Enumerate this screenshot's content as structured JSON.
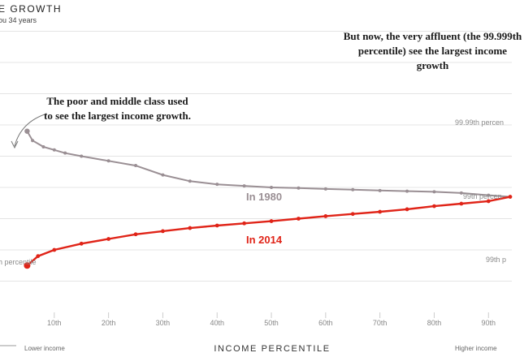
{
  "header": {
    "title": "E GROWTH",
    "subtitle": "ou 34 years"
  },
  "annotations": {
    "poor": "The poor and middle class used to see the largest income growth.",
    "rich": "But now, the very affluent (the 99.999th percentile) see the largest income growth"
  },
  "right_labels": [
    "99.99th percen",
    "99th percen",
    "99th p"
  ],
  "left_label": "h percentile",
  "bottom_labels": {
    "lower": "Lower income",
    "higher": "Higher income"
  },
  "colors": {
    "series_1980": "#9a8f94",
    "series_2014": "#e02418",
    "grid": "#e4e4e4"
  },
  "chart_data": {
    "type": "line",
    "xlabel": "INCOME PERCENTILE",
    "x_ticks": [
      "10th",
      "20th",
      "30th",
      "40th",
      "50th",
      "60th",
      "70th",
      "80th",
      "90th"
    ],
    "x_tick_values": [
      10,
      20,
      30,
      40,
      50,
      60,
      70,
      80,
      90
    ],
    "xlim": [
      0,
      94
    ],
    "ylim": [
      0,
      100
    ],
    "grid": true,
    "series": [
      {
        "name": "In 1980",
        "x": [
          5,
          6,
          8,
          10,
          12,
          15,
          20,
          25,
          30,
          35,
          40,
          45,
          50,
          55,
          60,
          65,
          70,
          75,
          80,
          85,
          90,
          94
        ],
        "y": [
          58,
          55,
          53,
          52,
          51,
          50,
          48.5,
          47,
          44,
          42,
          41,
          40.5,
          40,
          39.8,
          39.5,
          39.3,
          39,
          38.8,
          38.6,
          38.2,
          37.5,
          37
        ]
      },
      {
        "name": "In 2014",
        "x": [
          5,
          7,
          10,
          15,
          20,
          25,
          30,
          35,
          40,
          45,
          50,
          55,
          60,
          65,
          70,
          75,
          80,
          85,
          90,
          94
        ],
        "y": [
          15,
          18,
          20,
          22,
          23.5,
          25,
          26,
          27,
          27.8,
          28.5,
          29.2,
          30,
          30.8,
          31.5,
          32.2,
          33,
          34,
          34.8,
          35.6,
          37
        ]
      }
    ]
  }
}
